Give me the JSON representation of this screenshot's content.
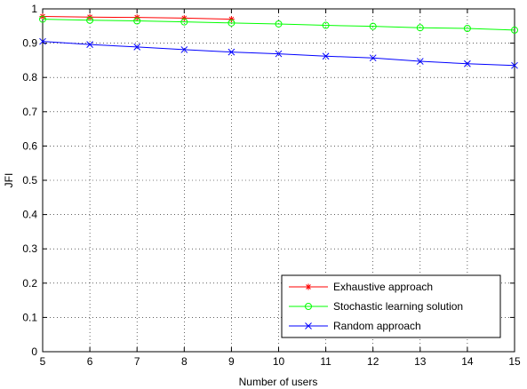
{
  "chart_data": {
    "type": "line",
    "xlabel": "Number of users",
    "ylabel": "JFI",
    "xlim": [
      5,
      15
    ],
    "ylim": [
      0,
      1
    ],
    "xticks": [
      "5",
      "6",
      "7",
      "8",
      "9",
      "10",
      "11",
      "12",
      "13",
      "14",
      "15"
    ],
    "yticks": [
      "0",
      "0.1",
      "0.2",
      "0.3",
      "0.4",
      "0.5",
      "0.6",
      "0.7",
      "0.8",
      "0.9",
      "1"
    ],
    "grid": true,
    "legend_position": "bottom-right",
    "series": [
      {
        "name": "Exhaustive approach",
        "color": "#ff0000",
        "marker": "asterisk",
        "x": [
          5,
          6,
          7,
          8,
          9
        ],
        "y": [
          0.978,
          0.976,
          0.975,
          0.973,
          0.97
        ]
      },
      {
        "name": "Stochastic learning solution",
        "color": "#00ff00",
        "marker": "circle",
        "x": [
          5,
          6,
          7,
          8,
          9,
          10,
          11,
          12,
          13,
          14,
          15
        ],
        "y": [
          0.97,
          0.967,
          0.965,
          0.962,
          0.959,
          0.956,
          0.952,
          0.949,
          0.945,
          0.943,
          0.938
        ]
      },
      {
        "name": "Random approach",
        "color": "#0000ff",
        "marker": "x",
        "x": [
          5,
          6,
          7,
          8,
          9,
          10,
          11,
          12,
          13,
          14,
          15
        ],
        "y": [
          0.905,
          0.896,
          0.889,
          0.881,
          0.874,
          0.869,
          0.862,
          0.857,
          0.847,
          0.84,
          0.835
        ]
      }
    ]
  }
}
